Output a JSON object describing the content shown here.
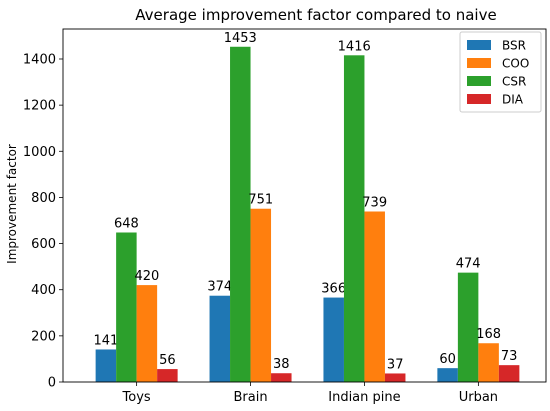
{
  "chart_data": {
    "type": "bar",
    "title": "Average improvement factor compared to naive",
    "xlabel": "",
    "ylabel": "Improvement factor",
    "categories": [
      "Toys",
      "Brain",
      "Indian pine",
      "Urban"
    ],
    "series": [
      {
        "name": "BSR",
        "color": "#1f77b4",
        "values": [
          141,
          374,
          366,
          60
        ]
      },
      {
        "name": "CSR",
        "color": "#2ca02c",
        "values": [
          648,
          1453,
          1416,
          474
        ]
      },
      {
        "name": "COO",
        "color": "#ff7f0e",
        "values": [
          420,
          751,
          739,
          168
        ]
      },
      {
        "name": "DIA",
        "color": "#d62728",
        "values": [
          56,
          38,
          37,
          73
        ]
      }
    ],
    "ylim": [
      0,
      1530
    ],
    "yticks": [
      0,
      200,
      400,
      600,
      800,
      1000,
      1200,
      1400
    ],
    "legend_order": [
      "BSR",
      "COO",
      "CSR",
      "DIA"
    ],
    "legend_position": "top-right",
    "grid": false
  }
}
